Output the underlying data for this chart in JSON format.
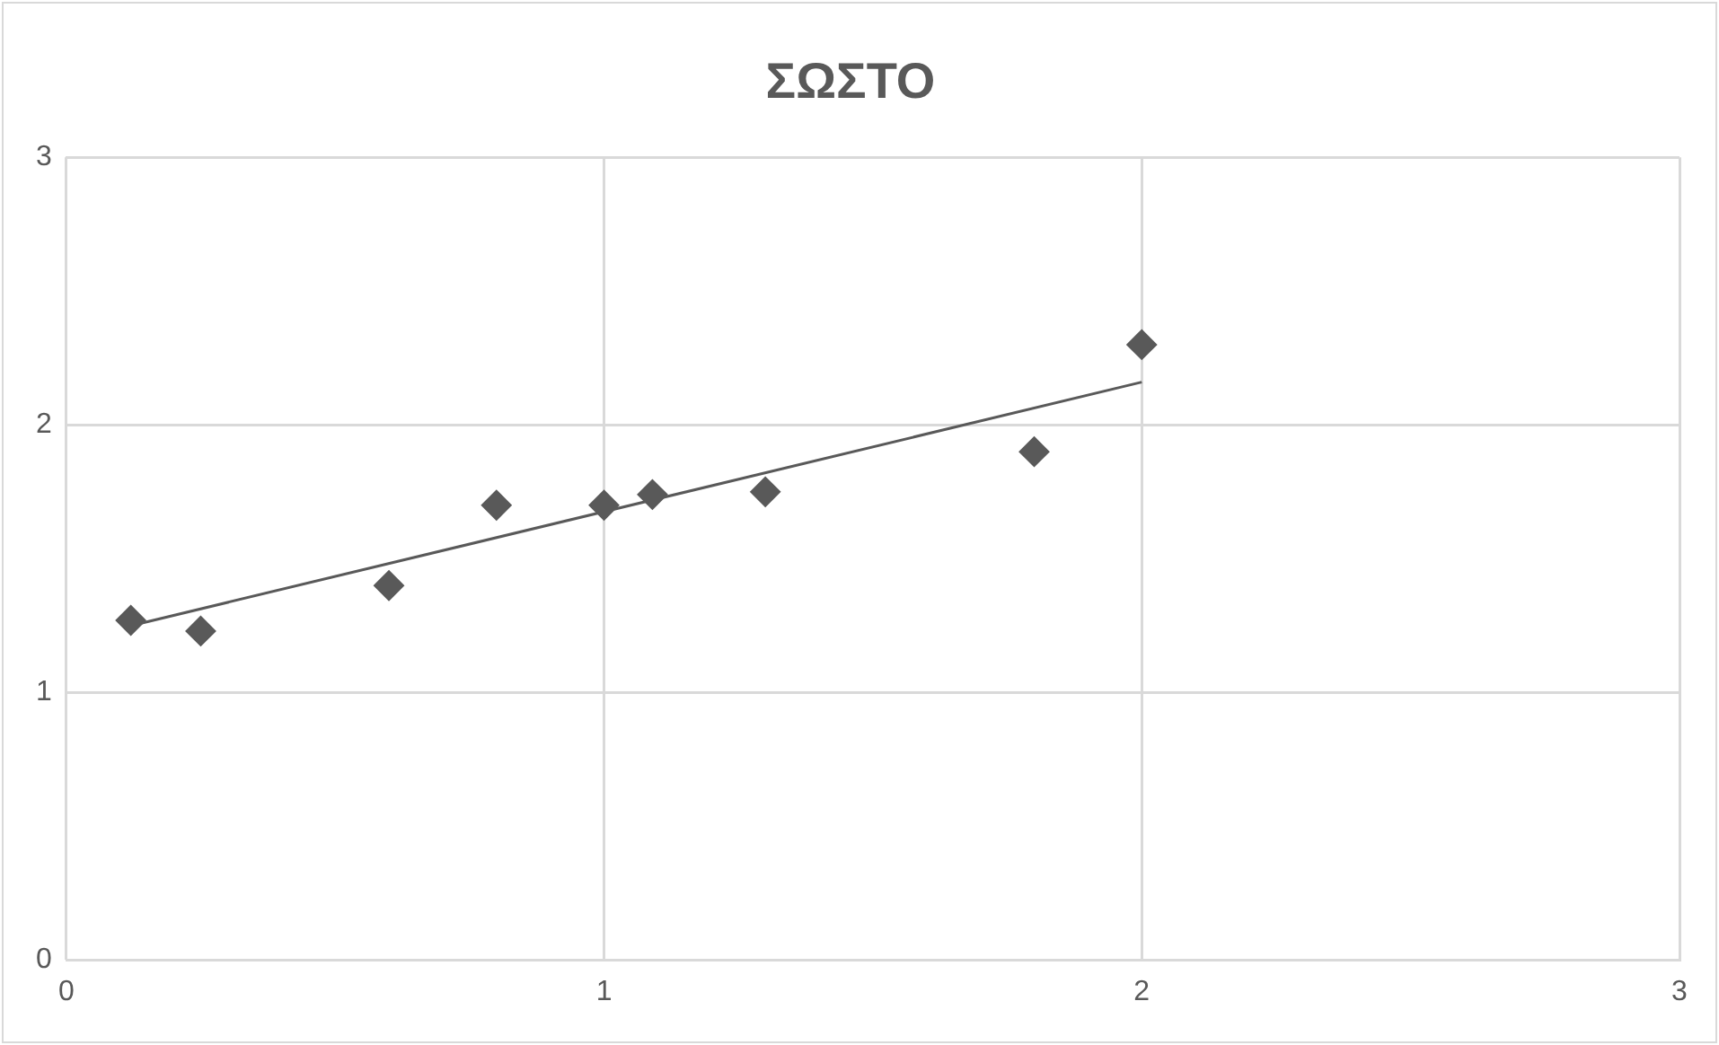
{
  "chart_data": {
    "type": "scatter",
    "title": "ΣΩΣΤΟ",
    "x": [
      0.12,
      0.25,
      0.6,
      0.8,
      1.0,
      1.09,
      1.3,
      1.8,
      2.0
    ],
    "series": [
      {
        "type": "scatter",
        "marker": "diamond",
        "color": "#595959",
        "values": [
          1.27,
          1.23,
          1.4,
          1.7,
          1.7,
          1.74,
          1.75,
          1.9,
          2.3
        ]
      },
      {
        "type": "line",
        "color": "#595959",
        "x": [
          0.12,
          2.0
        ],
        "values": [
          1.25,
          2.16
        ]
      }
    ],
    "xlim": [
      0,
      3
    ],
    "xticks": [
      0,
      1,
      2,
      3
    ],
    "ylim": [
      0,
      3
    ],
    "yticks": [
      0,
      1,
      2,
      3
    ],
    "grid": true,
    "legend": false,
    "line_style": "solid"
  }
}
